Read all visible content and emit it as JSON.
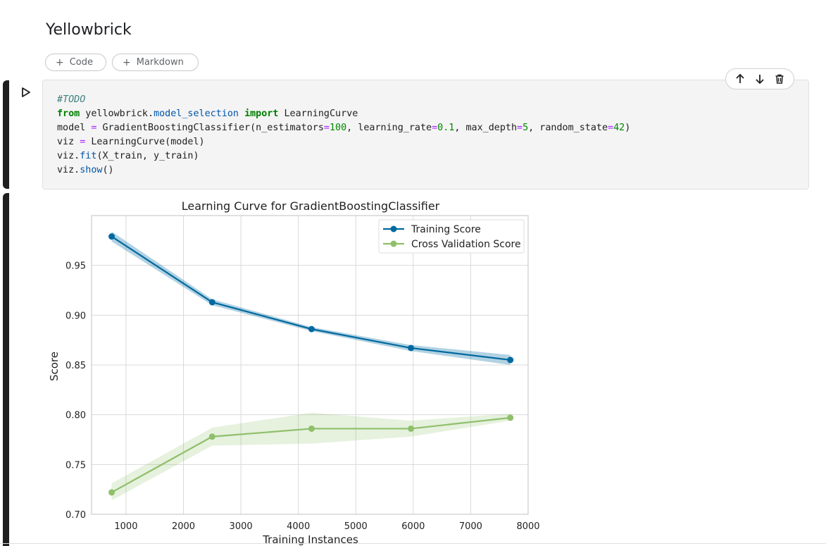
{
  "notebook": {
    "section_heading": "Yellowbrick",
    "add_code_label": "Code",
    "add_markdown_label": "Markdown",
    "code_lines": [
      "#TODO",
      "from yellowbrick.model_selection import LearningCurve",
      "model = GradientBoostingClassifier(n_estimators=100, learning_rate=0.1, max_depth=5, random_state=42)",
      "viz = LearningCurve(model)",
      "viz.fit(X_train, y_train)",
      "viz.show()"
    ],
    "toolbar_icons": [
      "arrow-up-icon",
      "arrow-down-icon",
      "trash-icon"
    ],
    "run_icon": "play-icon"
  },
  "chart_data": {
    "type": "line",
    "title": "Learning Curve for GradientBoostingClassifier",
    "xlabel": "Training Instances",
    "ylabel": "Score",
    "xlim": [
      400,
      8000
    ],
    "ylim": [
      0.7,
      1.0
    ],
    "xticks": [
      1000,
      2000,
      3000,
      4000,
      5000,
      6000,
      7000,
      8000
    ],
    "yticks": [
      0.7,
      0.75,
      0.8,
      0.85,
      0.9,
      0.95
    ],
    "grid": true,
    "legend_position": "top-right",
    "x": [
      750,
      2500,
      4230,
      5960,
      7690
    ],
    "series": [
      {
        "name": "Training Score",
        "color": "#0069a0",
        "values": [
          0.979,
          0.913,
          0.886,
          0.867,
          0.855
        ],
        "lower": [
          0.974,
          0.91,
          0.884,
          0.864,
          0.85
        ],
        "upper": [
          0.984,
          0.916,
          0.888,
          0.87,
          0.86
        ]
      },
      {
        "name": "Cross Validation Score",
        "color": "#8fbf6a",
        "values": [
          0.722,
          0.778,
          0.786,
          0.786,
          0.797
        ],
        "lower": [
          0.714,
          0.769,
          0.771,
          0.778,
          0.794
        ],
        "upper": [
          0.731,
          0.787,
          0.802,
          0.794,
          0.801
        ]
      }
    ]
  }
}
